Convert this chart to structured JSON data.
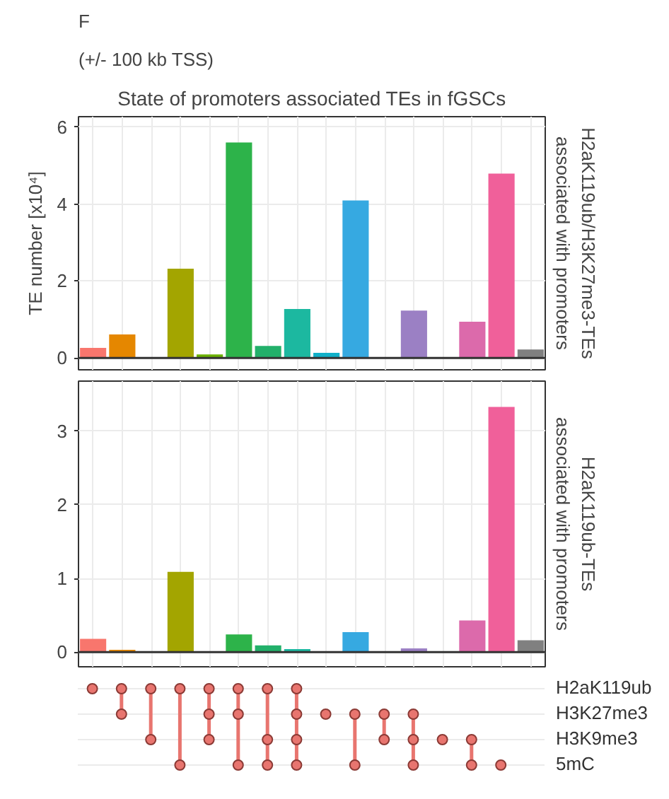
{
  "chart_data": [
    {
      "type": "bar",
      "title": "State of promoters associated TEs in fGSCs",
      "annotations": [
        "F",
        "(+/- 100 kb TSS)"
      ],
      "ylabel": "TE number [x10⁴]",
      "y2label": "H2aK119ub/H3K27me3-TEs\nassociated with promoters",
      "categories": [
        null,
        null,
        null,
        null,
        null,
        null,
        null,
        null,
        null,
        null,
        null,
        null,
        null,
        null,
        null,
        null
      ],
      "values": [
        0.26,
        0.61,
        null,
        2.32,
        0.09,
        5.6,
        0.31,
        1.27,
        0.13,
        4.09,
        null,
        1.23,
        null,
        0.94,
        4.79,
        0.22
      ],
      "colors": [
        "#f8766d",
        "#e58700",
        "#c99800",
        "#a3a500",
        "#6bb100",
        "#2db34a",
        "#22b06a",
        "#1cb8a0",
        "#10b0c8",
        "#36a9e1",
        "#619cff",
        "#9b80c4",
        "#e76bf3",
        "#dc6aab",
        "#f0609a",
        "#808080"
      ],
      "ylim": [
        -0.31,
        6.27
      ],
      "yticks": [
        0,
        2,
        4,
        6
      ],
      "grid": true,
      "tick_labels": "y",
      "ref_lines": [
        {
          "axis": "y",
          "value": 0,
          "color": "#333333"
        }
      ]
    },
    {
      "type": "bar",
      "y2label": "H2aK119ub-TEs\nassociated with promoters",
      "categories": [
        null,
        null,
        null,
        null,
        null,
        null,
        null,
        null,
        null,
        null,
        null,
        null,
        null,
        null,
        null,
        null
      ],
      "values": [
        0.18,
        0.03,
        null,
        1.09,
        null,
        0.24,
        0.09,
        0.04,
        null,
        0.27,
        null,
        0.05,
        null,
        0.43,
        3.33,
        0.16
      ],
      "colors": [
        "#f8766d",
        "#e58700",
        "#c99800",
        "#a3a500",
        "#6bb100",
        "#2db34a",
        "#22b06a",
        "#1cb8a0",
        "#10b0c8",
        "#36a9e1",
        "#619cff",
        "#9b80c4",
        "#e76bf3",
        "#dc6aab",
        "#f0609a",
        "#808080"
      ],
      "ylim": [
        -0.2,
        3.68
      ],
      "yticks": [
        0,
        1,
        2,
        3
      ],
      "grid": true,
      "tick_labels": "y",
      "ref_lines": [
        {
          "axis": "y",
          "value": 0,
          "color": "#333333"
        }
      ]
    },
    {
      "type": "other",
      "categories": [
        null,
        null,
        null,
        null,
        null,
        null,
        null,
        null,
        null,
        null,
        null,
        null,
        null,
        null,
        null,
        null
      ],
      "y_categories": [
        "H2aK119ub",
        "H3K27me3",
        "H3K9me3",
        "5mC"
      ],
      "cells": [
        [
          true,
          true,
          true,
          true,
          true,
          true,
          true,
          true,
          null,
          null,
          null,
          null,
          null,
          null,
          null,
          null
        ],
        [
          null,
          true,
          null,
          null,
          true,
          true,
          null,
          true,
          true,
          true,
          true,
          true,
          null,
          null,
          null,
          null
        ],
        [
          null,
          null,
          true,
          null,
          true,
          null,
          true,
          true,
          null,
          null,
          true,
          true,
          true,
          true,
          null,
          null
        ],
        [
          null,
          null,
          null,
          true,
          null,
          true,
          true,
          true,
          null,
          true,
          null,
          true,
          null,
          true,
          true,
          null
        ]
      ],
      "color": "#e8756f"
    }
  ]
}
